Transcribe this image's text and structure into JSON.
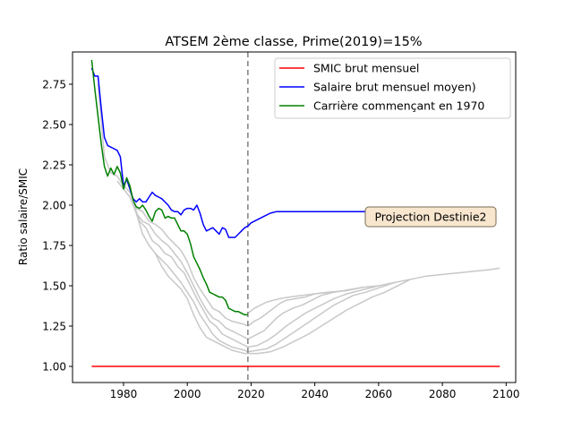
{
  "chart_data": {
    "type": "line",
    "title": "ATSEM 2ème classe, Prime(2019)=15%",
    "xlabel": "",
    "ylabel": "Ratio salaire/SMIC",
    "xlim": [
      1964,
      2103
    ],
    "ylim": [
      0.9,
      2.95
    ],
    "xticks": [
      1980,
      2000,
      2020,
      2040,
      2060,
      2080,
      2100
    ],
    "yticks": [
      1.0,
      1.25,
      1.5,
      1.75,
      2.0,
      2.25,
      2.5,
      2.75
    ],
    "ytick_labels": [
      "1.00",
      "1.25",
      "1.50",
      "1.75",
      "2.00",
      "2.25",
      "2.50",
      "2.75"
    ],
    "grid": false,
    "legend_position": "upper-right",
    "vline": {
      "x": 2019,
      "style": "dashed",
      "color": "#808080"
    },
    "annotation": {
      "text": "Projection Destinie2",
      "x": 2078,
      "y": 1.95
    },
    "colors": {
      "smic": "#ff0000",
      "moyen": "#0000ff",
      "carriere": "#008000",
      "gray": "#c8c8c8"
    },
    "series": [
      {
        "name": "SMIC brut mensuel",
        "color": "#ff0000",
        "x": [
          1970,
          2098
        ],
        "y": [
          1.0,
          1.0
        ]
      },
      {
        "name": "Salaire brut mensuel moyen)",
        "color": "#0000ff",
        "x": [
          1970,
          1971,
          1972,
          1973,
          1974,
          1975,
          1976,
          1977,
          1978,
          1979,
          1980,
          1981,
          1982,
          1983,
          1984,
          1985,
          1986,
          1987,
          1988,
          1989,
          1990,
          1991,
          1992,
          1993,
          1994,
          1995,
          1996,
          1997,
          1998,
          1999,
          2000,
          2001,
          2002,
          2003,
          2004,
          2005,
          2006,
          2007,
          2008,
          2009,
          2010,
          2011,
          2012,
          2013,
          2014,
          2015,
          2016,
          2017,
          2018,
          2019,
          2020,
          2022,
          2024,
          2026,
          2028,
          2030,
          2040,
          2050,
          2060,
          2070,
          2080
        ],
        "y": [
          2.85,
          2.8,
          2.8,
          2.6,
          2.42,
          2.37,
          2.36,
          2.35,
          2.34,
          2.3,
          2.12,
          2.16,
          2.1,
          2.04,
          2.02,
          2.04,
          2.02,
          2.02,
          2.05,
          2.08,
          2.06,
          2.05,
          2.04,
          2.02,
          2.0,
          1.97,
          1.96,
          1.96,
          1.94,
          1.97,
          1.98,
          1.98,
          1.97,
          2.0,
          1.95,
          1.88,
          1.84,
          1.85,
          1.86,
          1.84,
          1.82,
          1.86,
          1.85,
          1.8,
          1.8,
          1.8,
          1.82,
          1.84,
          1.86,
          1.87,
          1.89,
          1.91,
          1.93,
          1.95,
          1.96,
          1.96,
          1.96,
          1.96,
          1.96,
          1.96,
          1.96
        ]
      },
      {
        "name": "Carrière commençant en 1970",
        "color": "#008000",
        "x": [
          1970,
          1971,
          1972,
          1973,
          1974,
          1975,
          1976,
          1977,
          1978,
          1979,
          1980,
          1981,
          1982,
          1983,
          1984,
          1985,
          1986,
          1987,
          1988,
          1989,
          1990,
          1991,
          1992,
          1993,
          1994,
          1995,
          1996,
          1997,
          1998,
          1999,
          2000,
          2001,
          2002,
          2003,
          2004,
          2005,
          2006,
          2007,
          2008,
          2009,
          2010,
          2011,
          2012,
          2013,
          2014,
          2015,
          2016,
          2017,
          2018,
          2019
        ],
        "y": [
          2.9,
          2.72,
          2.55,
          2.38,
          2.24,
          2.18,
          2.23,
          2.19,
          2.24,
          2.2,
          2.1,
          2.17,
          2.12,
          2.03,
          1.99,
          1.98,
          2.0,
          1.97,
          1.93,
          1.9,
          1.96,
          1.98,
          1.97,
          1.92,
          1.93,
          1.92,
          1.92,
          1.88,
          1.84,
          1.84,
          1.82,
          1.76,
          1.68,
          1.64,
          1.6,
          1.55,
          1.51,
          1.46,
          1.45,
          1.44,
          1.43,
          1.43,
          1.41,
          1.36,
          1.35,
          1.34,
          1.34,
          1.33,
          1.32,
          1.32
        ]
      }
    ],
    "gray_series": [
      {
        "x": [
          1972,
          1974,
          1976,
          1978,
          1980,
          1982,
          1984,
          1986,
          1988,
          1990,
          1992,
          1994,
          1996,
          1998,
          2000,
          2002,
          2004,
          2006,
          2008,
          2010,
          2012,
          2014,
          2016,
          2018,
          2019
        ],
        "y": [
          2.75,
          2.3,
          2.2,
          2.18,
          2.12,
          2.08,
          1.98,
          1.96,
          1.9,
          1.88,
          1.85,
          1.8,
          1.76,
          1.72,
          1.65,
          1.55,
          1.48,
          1.42,
          1.36,
          1.34,
          1.3,
          1.28,
          1.27,
          1.26,
          1.25
        ]
      },
      {
        "x": [
          1978,
          1980,
          1982,
          1984,
          1986,
          1988,
          1990,
          1992,
          1994,
          1996,
          1998,
          2000,
          2002,
          2004,
          2006,
          2008,
          2010,
          2012,
          2014,
          2016,
          2018,
          2019
        ],
        "y": [
          2.15,
          2.1,
          2.05,
          1.95,
          1.9,
          1.88,
          1.82,
          1.78,
          1.75,
          1.7,
          1.65,
          1.58,
          1.5,
          1.42,
          1.35,
          1.3,
          1.28,
          1.24,
          1.22,
          1.2,
          1.18,
          1.17
        ]
      },
      {
        "x": [
          1983,
          1985,
          1987,
          1989,
          1991,
          1993,
          1995,
          1997,
          1999,
          2001,
          2003,
          2005,
          2007,
          2009,
          2011,
          2013,
          2015,
          2017,
          2019
        ],
        "y": [
          2.02,
          1.9,
          1.86,
          1.78,
          1.75,
          1.7,
          1.68,
          1.62,
          1.58,
          1.5,
          1.42,
          1.35,
          1.28,
          1.25,
          1.2,
          1.18,
          1.16,
          1.14,
          1.12
        ]
      },
      {
        "x": [
          1984,
          1986,
          1988,
          1990,
          1992,
          1994,
          1996,
          1998,
          2000,
          2002,
          2004,
          2006,
          2008,
          2010,
          2012,
          2014,
          2016,
          2018,
          2019
        ],
        "y": [
          1.95,
          1.82,
          1.75,
          1.7,
          1.66,
          1.62,
          1.57,
          1.52,
          1.46,
          1.4,
          1.32,
          1.26,
          1.2,
          1.16,
          1.14,
          1.12,
          1.11,
          1.1,
          1.09
        ]
      },
      {
        "x": [
          1990,
          1992,
          1994,
          1996,
          1998,
          2000,
          2002,
          2004,
          2006,
          2008,
          2010,
          2012,
          2014,
          2016,
          2018,
          2019
        ],
        "y": [
          1.7,
          1.62,
          1.56,
          1.52,
          1.48,
          1.42,
          1.32,
          1.24,
          1.18,
          1.16,
          1.14,
          1.12,
          1.1,
          1.09,
          1.08,
          1.08
        ]
      },
      {
        "x": [
          2019,
          2021,
          2023,
          2025,
          2027,
          2029,
          2032,
          2036,
          2040,
          2045,
          2050,
          2055,
          2060,
          2065,
          2070,
          2075,
          2080,
          2085,
          2090,
          2095,
          2098
        ],
        "y": [
          1.33,
          1.36,
          1.38,
          1.4,
          1.41,
          1.42,
          1.43,
          1.44,
          1.45,
          1.46,
          1.47,
          1.49,
          1.5,
          1.52,
          1.54,
          1.56,
          1.57,
          1.58,
          1.59,
          1.6,
          1.61
        ]
      },
      {
        "x": [
          2019,
          2021,
          2023,
          2025,
          2027,
          2029,
          2031,
          2034,
          2037,
          2040,
          2044,
          2050
        ],
        "y": [
          1.25,
          1.28,
          1.3,
          1.33,
          1.36,
          1.39,
          1.41,
          1.42,
          1.43,
          1.45,
          1.46,
          1.47
        ]
      },
      {
        "x": [
          2019,
          2021,
          2024,
          2026,
          2028,
          2030,
          2033,
          2036,
          2039,
          2042,
          2046,
          2055
        ],
        "y": [
          1.17,
          1.19,
          1.22,
          1.26,
          1.3,
          1.33,
          1.36,
          1.38,
          1.41,
          1.44,
          1.46,
          1.49
        ]
      },
      {
        "x": [
          2019,
          2022,
          2025,
          2028,
          2031,
          2034,
          2037,
          2040,
          2043,
          2046,
          2050,
          2060
        ],
        "y": [
          1.12,
          1.13,
          1.16,
          1.2,
          1.25,
          1.29,
          1.33,
          1.36,
          1.39,
          1.42,
          1.45,
          1.5
        ]
      },
      {
        "x": [
          2019,
          2022,
          2025,
          2028,
          2031,
          2034,
          2037,
          2040,
          2043,
          2046,
          2049,
          2052,
          2056,
          2065
        ],
        "y": [
          1.09,
          1.1,
          1.11,
          1.14,
          1.18,
          1.22,
          1.26,
          1.3,
          1.34,
          1.38,
          1.41,
          1.44,
          1.46,
          1.52
        ]
      },
      {
        "x": [
          2019,
          2022,
          2026,
          2030,
          2034,
          2038,
          2042,
          2046,
          2050,
          2054,
          2058,
          2062,
          2070
        ],
        "y": [
          1.08,
          1.08,
          1.09,
          1.12,
          1.16,
          1.2,
          1.25,
          1.3,
          1.35,
          1.39,
          1.43,
          1.46,
          1.54
        ]
      }
    ]
  }
}
